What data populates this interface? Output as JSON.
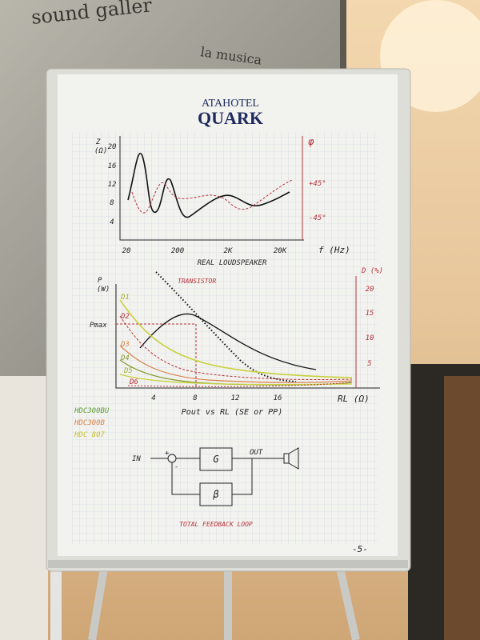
{
  "window": {
    "sign": "sound galler",
    "motto": "la musica"
  },
  "flipchart": {
    "header": {
      "brand": "ATAHOTEL",
      "title": "QUARK"
    },
    "impedance_plot": {
      "y_label": "Z",
      "y_unit": "(Ω)",
      "y_ticks": [
        "20",
        "16",
        "12",
        "8",
        "4"
      ],
      "x_ticks": [
        "20",
        "200",
        "2K",
        "20K"
      ],
      "x_label": "f (Hz)",
      "y2_label": "φ",
      "y2_ticks": [
        "+45°",
        "-45°"
      ],
      "caption": "REAL LOUDSPEAKER"
    },
    "power_plot": {
      "y_label": "P",
      "y_unit": "(W)",
      "pmax": "Pmax",
      "curve_labels": [
        "D1",
        "D2",
        "D3",
        "D4",
        "D5",
        "D6"
      ],
      "annotation": "TRANSISTOR",
      "y2_label": "D (%)",
      "y2_ticks": [
        "20",
        "15",
        "10",
        "5"
      ],
      "x_ticks": [
        "4",
        "8",
        "12",
        "16"
      ],
      "x_label": "RL (Ω)",
      "caption": "Pout vs RL (SE or PP)",
      "legend": [
        "HDC300BU",
        "HDC300B",
        "HDC 807"
      ]
    },
    "block_diagram": {
      "input": "IN",
      "sum_plus": "+",
      "sum_minus": "-",
      "gain": "G",
      "output": "OUT",
      "feedback": "β",
      "caption": "TOTAL FEEDBACK LOOP"
    },
    "page_number": "-5-"
  }
}
